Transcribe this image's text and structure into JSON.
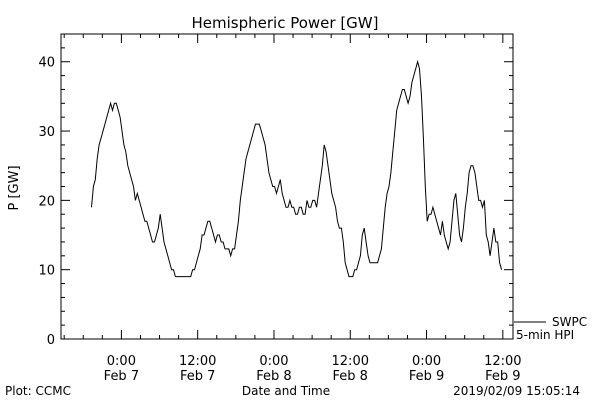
{
  "chart_data": {
    "type": "line",
    "title": "Hemispheric Power [GW]",
    "ylabel": "P [GW]",
    "xlabel": "Date and Time",
    "xlim_hours": [
      -9.5,
      61.6
    ],
    "ylim": [
      0,
      44
    ],
    "grid": false,
    "y_ticks": [
      0,
      10,
      20,
      30,
      40
    ],
    "x_ticks": [
      {
        "hour": 0,
        "time": "0:00",
        "date": "Feb 7"
      },
      {
        "hour": 12,
        "time": "12:00",
        "date": "Feb 7"
      },
      {
        "hour": 24,
        "time": "0:00",
        "date": "Feb 8"
      },
      {
        "hour": 36,
        "time": "12:00",
        "date": "Feb 8"
      },
      {
        "hour": 48,
        "time": "0:00",
        "date": "Feb 9"
      },
      {
        "hour": 60,
        "time": "12:00",
        "date": "Feb 9"
      }
    ],
    "series": [
      {
        "name": "5-min HPI",
        "color": "#000000",
        "points": [
          [
            -4.7,
            19
          ],
          [
            -4.4,
            22
          ],
          [
            -4.1,
            23
          ],
          [
            -3.8,
            26
          ],
          [
            -3.5,
            28
          ],
          [
            -3.2,
            29
          ],
          [
            -2.9,
            30
          ],
          [
            -2.6,
            31
          ],
          [
            -2.3,
            32
          ],
          [
            -2.0,
            33
          ],
          [
            -1.7,
            34
          ],
          [
            -1.4,
            33
          ],
          [
            -1.1,
            34
          ],
          [
            -0.8,
            34
          ],
          [
            -0.5,
            33
          ],
          [
            -0.2,
            32
          ],
          [
            0.1,
            30
          ],
          [
            0.4,
            28
          ],
          [
            0.7,
            27
          ],
          [
            1.0,
            25
          ],
          [
            1.3,
            24
          ],
          [
            1.6,
            23
          ],
          [
            1.9,
            22
          ],
          [
            2.2,
            20
          ],
          [
            2.5,
            21
          ],
          [
            2.8,
            20
          ],
          [
            3.1,
            19
          ],
          [
            3.4,
            18
          ],
          [
            3.7,
            17
          ],
          [
            4.0,
            17
          ],
          [
            4.3,
            16
          ],
          [
            4.6,
            15
          ],
          [
            4.9,
            14
          ],
          [
            5.2,
            14
          ],
          [
            5.5,
            15
          ],
          [
            5.8,
            16
          ],
          [
            6.1,
            18
          ],
          [
            6.4,
            16
          ],
          [
            6.7,
            14
          ],
          [
            7.0,
            13
          ],
          [
            7.3,
            12
          ],
          [
            7.6,
            11
          ],
          [
            7.9,
            10
          ],
          [
            8.2,
            10
          ],
          [
            8.5,
            9
          ],
          [
            8.8,
            9
          ],
          [
            9.1,
            9
          ],
          [
            9.4,
            9
          ],
          [
            9.7,
            9
          ],
          [
            10.0,
            9
          ],
          [
            10.3,
            9
          ],
          [
            10.6,
            9
          ],
          [
            10.9,
            9
          ],
          [
            11.2,
            10
          ],
          [
            11.5,
            10
          ],
          [
            11.8,
            11
          ],
          [
            12.1,
            12
          ],
          [
            12.4,
            13
          ],
          [
            12.7,
            15
          ],
          [
            13.0,
            15
          ],
          [
            13.3,
            16
          ],
          [
            13.6,
            17
          ],
          [
            13.9,
            17
          ],
          [
            14.2,
            16
          ],
          [
            14.5,
            15
          ],
          [
            14.8,
            14
          ],
          [
            15.1,
            15
          ],
          [
            15.4,
            15
          ],
          [
            15.7,
            14
          ],
          [
            16.0,
            14
          ],
          [
            16.3,
            13
          ],
          [
            16.6,
            13
          ],
          [
            16.9,
            13
          ],
          [
            17.2,
            12
          ],
          [
            17.5,
            13
          ],
          [
            17.8,
            13
          ],
          [
            18.1,
            15
          ],
          [
            18.4,
            17
          ],
          [
            18.7,
            20
          ],
          [
            19.0,
            22
          ],
          [
            19.3,
            24
          ],
          [
            19.6,
            26
          ],
          [
            19.9,
            27
          ],
          [
            20.2,
            28
          ],
          [
            20.5,
            29
          ],
          [
            20.8,
            30
          ],
          [
            21.1,
            31
          ],
          [
            21.4,
            31
          ],
          [
            21.7,
            31
          ],
          [
            22.0,
            30
          ],
          [
            22.3,
            29
          ],
          [
            22.6,
            28
          ],
          [
            22.9,
            26
          ],
          [
            23.2,
            24
          ],
          [
            23.5,
            23
          ],
          [
            23.8,
            22
          ],
          [
            24.1,
            22
          ],
          [
            24.4,
            21
          ],
          [
            24.7,
            22
          ],
          [
            25.0,
            23
          ],
          [
            25.3,
            21
          ],
          [
            25.6,
            20
          ],
          [
            25.9,
            19
          ],
          [
            26.2,
            19
          ],
          [
            26.5,
            20
          ],
          [
            26.8,
            19
          ],
          [
            27.1,
            19
          ],
          [
            27.4,
            18
          ],
          [
            27.7,
            18
          ],
          [
            28.0,
            19
          ],
          [
            28.3,
            19
          ],
          [
            28.6,
            18
          ],
          [
            28.9,
            18
          ],
          [
            29.2,
            20
          ],
          [
            29.5,
            19
          ],
          [
            29.8,
            19
          ],
          [
            30.1,
            20
          ],
          [
            30.4,
            20
          ],
          [
            30.7,
            19
          ],
          [
            31.0,
            21
          ],
          [
            31.3,
            23
          ],
          [
            31.6,
            25
          ],
          [
            31.9,
            28
          ],
          [
            32.2,
            27
          ],
          [
            32.5,
            25
          ],
          [
            32.8,
            23
          ],
          [
            33.1,
            21
          ],
          [
            33.4,
            20
          ],
          [
            33.7,
            19
          ],
          [
            34.0,
            17
          ],
          [
            34.3,
            16
          ],
          [
            34.6,
            16
          ],
          [
            34.9,
            14
          ],
          [
            35.2,
            11
          ],
          [
            35.5,
            10
          ],
          [
            35.8,
            9
          ],
          [
            36.1,
            9
          ],
          [
            36.4,
            9
          ],
          [
            36.7,
            10
          ],
          [
            37.0,
            10
          ],
          [
            37.3,
            11
          ],
          [
            37.6,
            12
          ],
          [
            37.9,
            15
          ],
          [
            38.2,
            16
          ],
          [
            38.5,
            14
          ],
          [
            38.8,
            12
          ],
          [
            39.1,
            11
          ],
          [
            39.4,
            11
          ],
          [
            39.7,
            11
          ],
          [
            40.0,
            11
          ],
          [
            40.3,
            11
          ],
          [
            40.6,
            12
          ],
          [
            40.9,
            13
          ],
          [
            41.2,
            16
          ],
          [
            41.5,
            19
          ],
          [
            41.8,
            21
          ],
          [
            42.1,
            22
          ],
          [
            42.4,
            24
          ],
          [
            42.7,
            27
          ],
          [
            43.0,
            30
          ],
          [
            43.3,
            33
          ],
          [
            43.6,
            34
          ],
          [
            43.9,
            35
          ],
          [
            44.2,
            36
          ],
          [
            44.5,
            36
          ],
          [
            44.8,
            35
          ],
          [
            45.1,
            34
          ],
          [
            45.4,
            35
          ],
          [
            45.7,
            37
          ],
          [
            46.0,
            38
          ],
          [
            46.3,
            39
          ],
          [
            46.6,
            40
          ],
          [
            46.9,
            39
          ],
          [
            47.2,
            35
          ],
          [
            47.5,
            29
          ],
          [
            47.8,
            22
          ],
          [
            48.1,
            17
          ],
          [
            48.4,
            18
          ],
          [
            48.7,
            18
          ],
          [
            49.0,
            19
          ],
          [
            49.3,
            18
          ],
          [
            49.6,
            17
          ],
          [
            49.9,
            16
          ],
          [
            50.2,
            15
          ],
          [
            50.5,
            17
          ],
          [
            50.8,
            15
          ],
          [
            51.1,
            14
          ],
          [
            51.4,
            13
          ],
          [
            51.7,
            14
          ],
          [
            52.0,
            17
          ],
          [
            52.3,
            20
          ],
          [
            52.6,
            21
          ],
          [
            52.9,
            18
          ],
          [
            53.2,
            15
          ],
          [
            53.5,
            14
          ],
          [
            53.8,
            16
          ],
          [
            54.1,
            19
          ],
          [
            54.4,
            21
          ],
          [
            54.7,
            24
          ],
          [
            55.0,
            25
          ],
          [
            55.3,
            25
          ],
          [
            55.6,
            24
          ],
          [
            55.9,
            22
          ],
          [
            56.2,
            20
          ],
          [
            56.5,
            20
          ],
          [
            56.8,
            19
          ],
          [
            57.1,
            20
          ],
          [
            57.4,
            15
          ],
          [
            57.7,
            14
          ],
          [
            58.0,
            12
          ],
          [
            58.3,
            14
          ],
          [
            58.6,
            16
          ],
          [
            58.9,
            14
          ],
          [
            59.2,
            14
          ],
          [
            59.5,
            11
          ],
          [
            59.8,
            10
          ]
        ]
      }
    ],
    "legend_placement": "bottom-right outside",
    "legend": [
      {
        "label": "SWPC",
        "color": "#000000"
      },
      {
        "label": "5-min HPI",
        "color": "#000000"
      }
    ]
  },
  "footer": {
    "plot_credit": "Plot: CCMC",
    "timestamp": "2019/02/09 15:05:14"
  }
}
